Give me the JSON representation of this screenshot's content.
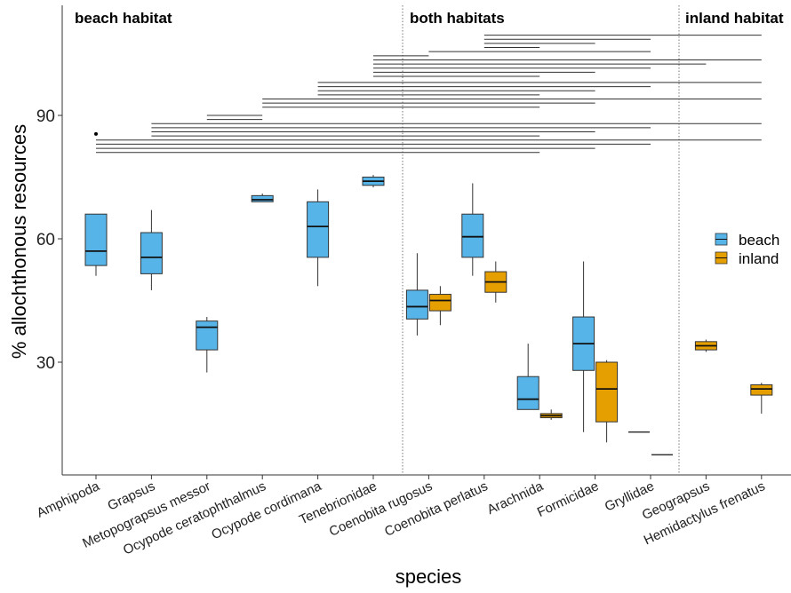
{
  "chart_data": {
    "type": "box",
    "xlabel": "species",
    "ylabel": "% allochthonous resources",
    "yticks": [
      30,
      60,
      90
    ],
    "ylim": [
      0,
      114
    ],
    "categories": [
      "Amphipoda",
      "Grapsus",
      "Metopograpsus messor",
      "Ocypode ceratophthalmus",
      "Ocypode cordimana",
      "Tenebrionidae",
      "Coenobita rugosus",
      "Coenobita perlatus",
      "Arachnida",
      "Formicidae",
      "Gryllidae",
      "Geograpsus",
      "Hemidactylus frenatus"
    ],
    "panels": [
      {
        "label": "beach habitat"
      },
      {
        "label": "both habitats"
      },
      {
        "label": "inland habitat"
      }
    ],
    "legend": {
      "position": "right",
      "items": [
        {
          "name": "beach",
          "color": "#56B4E9"
        },
        {
          "name": "inland",
          "color": "#E69F00"
        }
      ]
    },
    "series": [
      {
        "name": "beach",
        "color": "#56B4E9",
        "boxes": [
          {
            "category": "Amphipoda",
            "min": 51,
            "q1": 53.5,
            "median": 57,
            "q3": 66,
            "max": 66
          },
          {
            "category": "Grapsus",
            "min": 47.5,
            "q1": 51.5,
            "median": 55.5,
            "q3": 61.5,
            "max": 67
          },
          {
            "category": "Metopograpsus messor",
            "min": 27.5,
            "q1": 33,
            "median": 38.5,
            "q3": 40,
            "max": 41
          },
          {
            "category": "Ocypode ceratophthalmus",
            "min": 69,
            "q1": 69,
            "median": 69.5,
            "q3": 70.5,
            "max": 71
          },
          {
            "category": "Ocypode cordimana",
            "min": 48.5,
            "q1": 55.5,
            "median": 63,
            "q3": 69,
            "max": 72
          },
          {
            "category": "Tenebrionidae",
            "min": 72.5,
            "q1": 73,
            "median": 74,
            "q3": 75,
            "max": 75.5
          },
          {
            "category": "Coenobita rugosus",
            "min": 36.5,
            "q1": 40.5,
            "median": 43.5,
            "q3": 47.5,
            "max": 56.5
          },
          {
            "category": "Coenobita perlatus",
            "min": 51,
            "q1": 55.5,
            "median": 60.5,
            "q3": 66,
            "max": 73.5
          },
          {
            "category": "Arachnida",
            "min": 18.5,
            "q1": 18.5,
            "median": 21,
            "q3": 26.5,
            "max": 34.5
          },
          {
            "category": "Formicidae",
            "min": 13,
            "q1": 28,
            "median": 34.5,
            "q3": 41,
            "max": 54.5
          },
          {
            "category": "Gryllidae",
            "min": 13,
            "q1": 13,
            "median": 13,
            "q3": 13,
            "max": 13
          }
        ]
      },
      {
        "name": "inland",
        "color": "#E69F00",
        "boxes": [
          {
            "category": "Coenobita rugosus",
            "min": 39,
            "q1": 42.5,
            "median": 45,
            "q3": 46.5,
            "max": 48.5
          },
          {
            "category": "Coenobita perlatus",
            "min": 44.5,
            "q1": 47,
            "median": 49.5,
            "q3": 52,
            "max": 54.5
          },
          {
            "category": "Arachnida",
            "min": 16,
            "q1": 16.5,
            "median": 17,
            "q3": 17.5,
            "max": 18.5
          },
          {
            "category": "Formicidae",
            "min": 10.5,
            "q1": 15.5,
            "median": 23.5,
            "q3": 30,
            "max": 30.5
          },
          {
            "category": "Gryllidae",
            "min": 7.5,
            "q1": 7.5,
            "median": 7.5,
            "q3": 7.5,
            "max": 7.5
          },
          {
            "category": "Geograpsus",
            "min": 32.5,
            "q1": 33,
            "median": 34,
            "q3": 35,
            "max": 35.5
          },
          {
            "category": "Hemidactylus frenatus",
            "min": 17.5,
            "q1": 22,
            "median": 23.5,
            "q3": 24.5,
            "max": 25
          }
        ]
      }
    ],
    "outliers": [
      {
        "category": "Amphipoda",
        "series": "beach",
        "value": 85.5
      }
    ],
    "comparison_lines": [
      {
        "y": 81,
        "from": "Amphipoda",
        "to": "Arachnida"
      },
      {
        "y": 82,
        "from": "Amphipoda",
        "to": "Formicidae"
      },
      {
        "y": 83,
        "from": "Amphipoda",
        "to": "Gryllidae"
      },
      {
        "y": 84,
        "from": "Amphipoda",
        "to": "Hemidactylus frenatus"
      },
      {
        "y": 85,
        "from": "Grapsus",
        "to": "Arachnida"
      },
      {
        "y": 86,
        "from": "Grapsus",
        "to": "Formicidae"
      },
      {
        "y": 87,
        "from": "Grapsus",
        "to": "Gryllidae"
      },
      {
        "y": 88,
        "from": "Grapsus",
        "to": "Hemidactylus frenatus"
      },
      {
        "y": 89,
        "from": "Metopograpsus messor",
        "to": "Ocypode ceratophthalmus"
      },
      {
        "y": 90,
        "from": "Metopograpsus messor",
        "to": "Ocypode ceratophthalmus"
      },
      {
        "y": 92,
        "from": "Ocypode ceratophthalmus",
        "to": "Arachnida"
      },
      {
        "y": 93,
        "from": "Ocypode ceratophthalmus",
        "to": "Formicidae"
      },
      {
        "y": 94,
        "from": "Ocypode ceratophthalmus",
        "to": "Hemidactylus frenatus"
      },
      {
        "y": 95,
        "from": "Ocypode cordimana",
        "to": "Arachnida"
      },
      {
        "y": 96,
        "from": "Ocypode cordimana",
        "to": "Formicidae"
      },
      {
        "y": 97,
        "from": "Ocypode cordimana",
        "to": "Gryllidae"
      },
      {
        "y": 98,
        "from": "Ocypode cordimana",
        "to": "Hemidactylus frenatus"
      },
      {
        "y": 99.5,
        "from": "Tenebrionidae",
        "to": "Arachnida"
      },
      {
        "y": 100.5,
        "from": "Tenebrionidae",
        "to": "Formicidae"
      },
      {
        "y": 101.5,
        "from": "Tenebrionidae",
        "to": "Gryllidae"
      },
      {
        "y": 102.5,
        "from": "Tenebrionidae",
        "to": "Geograpsus"
      },
      {
        "y": 103.5,
        "from": "Tenebrionidae",
        "to": "Hemidactylus frenatus"
      },
      {
        "y": 104.5,
        "from": "Tenebrionidae",
        "to": "Coenobita rugosus"
      },
      {
        "y": 105.5,
        "from": "Coenobita rugosus",
        "to": "Gryllidae"
      },
      {
        "y": 106.5,
        "from": "Coenobita perlatus",
        "to": "Arachnida"
      },
      {
        "y": 107.5,
        "from": "Coenobita perlatus",
        "to": "Formicidae"
      },
      {
        "y": 108.5,
        "from": "Coenobita perlatus",
        "to": "Gryllidae"
      },
      {
        "y": 109.5,
        "from": "Coenobita perlatus",
        "to": "Hemidactylus frenatus"
      }
    ]
  }
}
